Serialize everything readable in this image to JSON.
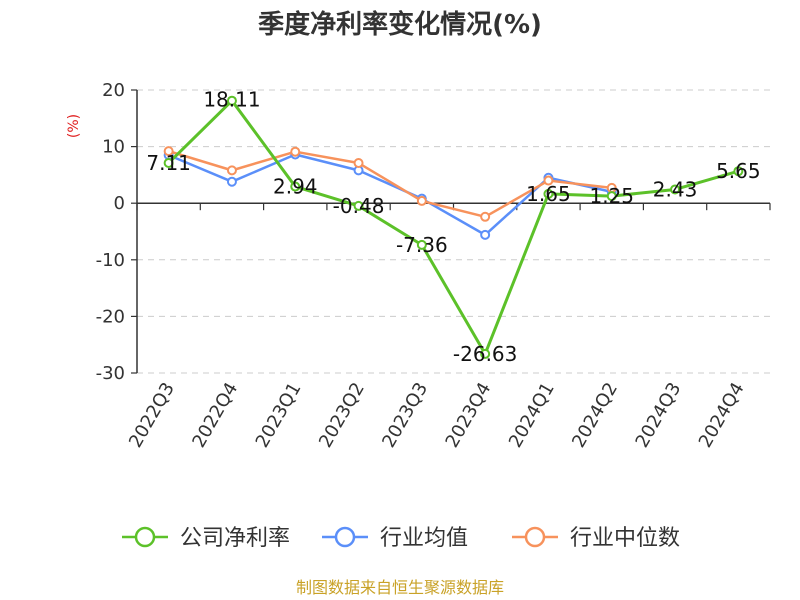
{
  "source_text": "制图数据来自恒生聚源数据库",
  "chart_data": {
    "type": "line",
    "title": "季度净利率变化情况(%)",
    "ylabel": "(%)",
    "xlabel": "",
    "categories": [
      "2022Q3",
      "2022Q4",
      "2023Q1",
      "2023Q2",
      "2023Q3",
      "2023Q4",
      "2024Q1",
      "2024Q2",
      "2024Q3",
      "2024Q4"
    ],
    "ylim": [
      -30,
      20
    ],
    "yticks": [
      20,
      10,
      0,
      -10,
      -20,
      -30
    ],
    "ytick_labels": [
      "20",
      "10",
      "0",
      "-10",
      "-20",
      "-30"
    ],
    "grid": true,
    "legend_position": "bottom",
    "series": [
      {
        "name": "公司净利率",
        "color": "#5cc129",
        "values": [
          7.11,
          18.11,
          2.94,
          -0.48,
          -7.36,
          -26.63,
          1.65,
          1.25,
          2.43,
          5.65
        ],
        "labels": [
          "7.11",
          "18.11",
          "2.94",
          "-0.48",
          "-7.36",
          "-26.63",
          "1.65",
          "1.25",
          "2.43",
          "5.65"
        ]
      },
      {
        "name": "行业均值",
        "color": "#5b8ff9",
        "values": [
          8.5,
          3.8,
          8.6,
          5.8,
          0.8,
          -5.6,
          4.5,
          2.0,
          null,
          null
        ]
      },
      {
        "name": "行业中位数",
        "color": "#f7925c",
        "values": [
          9.2,
          5.8,
          9.1,
          7.1,
          0.4,
          -2.4,
          4.0,
          2.7,
          null,
          null
        ]
      }
    ]
  }
}
